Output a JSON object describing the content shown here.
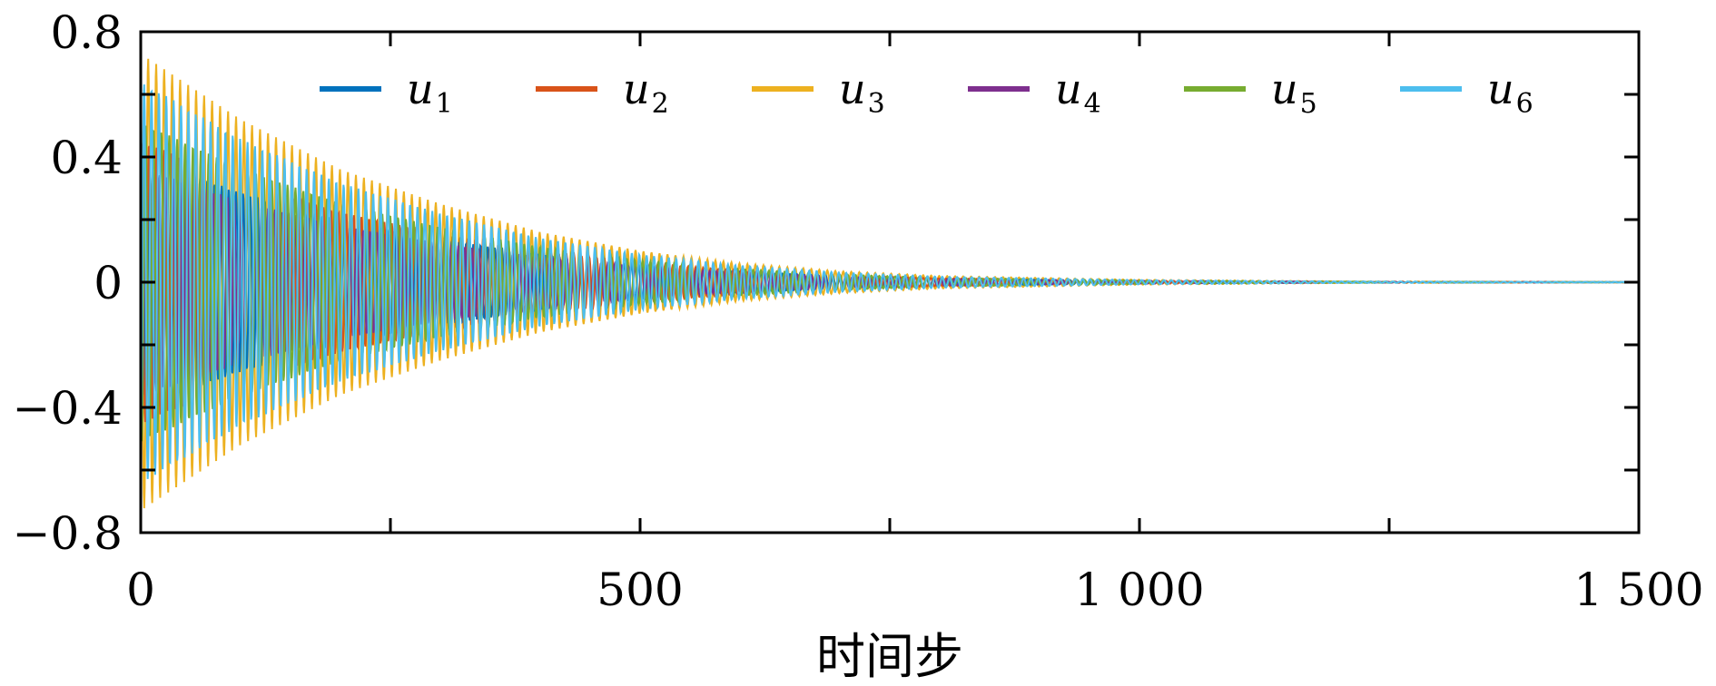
{
  "chart_data": {
    "type": "line",
    "title": "",
    "xlabel": "时间步",
    "ylabel": "",
    "xlim": [
      0,
      1500
    ],
    "ylim": [
      -0.8,
      0.8
    ],
    "xticks": [
      0,
      500,
      1000,
      1500
    ],
    "xtick_labels": [
      "0",
      "500",
      "1 000",
      "1 500"
    ],
    "yticks": [
      -0.8,
      -0.4,
      0,
      0.4,
      0.8
    ],
    "ytick_labels": [
      "−0.8",
      "−0.4",
      "0",
      "0.4",
      "0.8"
    ],
    "legend_position": "top",
    "grid": false,
    "envelope": {
      "description": "decaying oscillation; amplitude of outer envelope vs time step",
      "x": [
        0,
        100,
        200,
        300,
        400,
        500,
        600,
        700,
        800,
        1000,
        1200,
        1500
      ],
      "amplitude": [
        0.73,
        0.52,
        0.36,
        0.25,
        0.16,
        0.1,
        0.06,
        0.035,
        0.02,
        0.008,
        0.003,
        0.001
      ]
    },
    "series": [
      {
        "name": "u",
        "sub": "1",
        "color": "#0072BD",
        "amp_scale": 0.55,
        "period": 7.2
      },
      {
        "name": "u",
        "sub": "2",
        "color": "#D95319",
        "amp_scale": 0.62,
        "period": 7.6
      },
      {
        "name": "u",
        "sub": "3",
        "color": "#EDB120",
        "amp_scale": 1.0,
        "period": 8.0
      },
      {
        "name": "u",
        "sub": "4",
        "color": "#7E2F8E",
        "amp_scale": 0.5,
        "period": 6.8
      },
      {
        "name": "u",
        "sub": "5",
        "color": "#77AC30",
        "amp_scale": 0.7,
        "period": 7.9
      },
      {
        "name": "u",
        "sub": "6",
        "color": "#4DBEEE",
        "amp_scale": 0.88,
        "period": 7.4
      }
    ]
  }
}
